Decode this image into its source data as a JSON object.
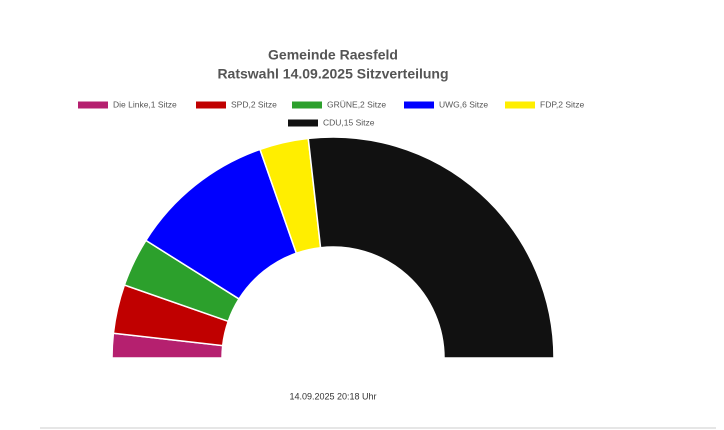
{
  "chart_data": {
    "type": "half-donut",
    "title": "Gemeinde Raesfeld",
    "subtitle": "Ratswahl 14.09.2025 Sitzverteilung",
    "categories": [
      "Die Linke,1 Sitze",
      "SPD,2 Sitze",
      "GRÜNE,2 Sitze",
      "UWG,6 Sitze",
      "FDP,2 Sitze",
      "CDU,15 Sitze"
    ],
    "values": [
      1,
      2,
      2,
      6,
      2,
      15
    ],
    "colors": [
      "#b5206f",
      "#c00000",
      "#2ca02c",
      "#0000ff",
      "#ffee00",
      "#111111"
    ],
    "annotation": "14.09.2025 20:18 Uhr"
  }
}
